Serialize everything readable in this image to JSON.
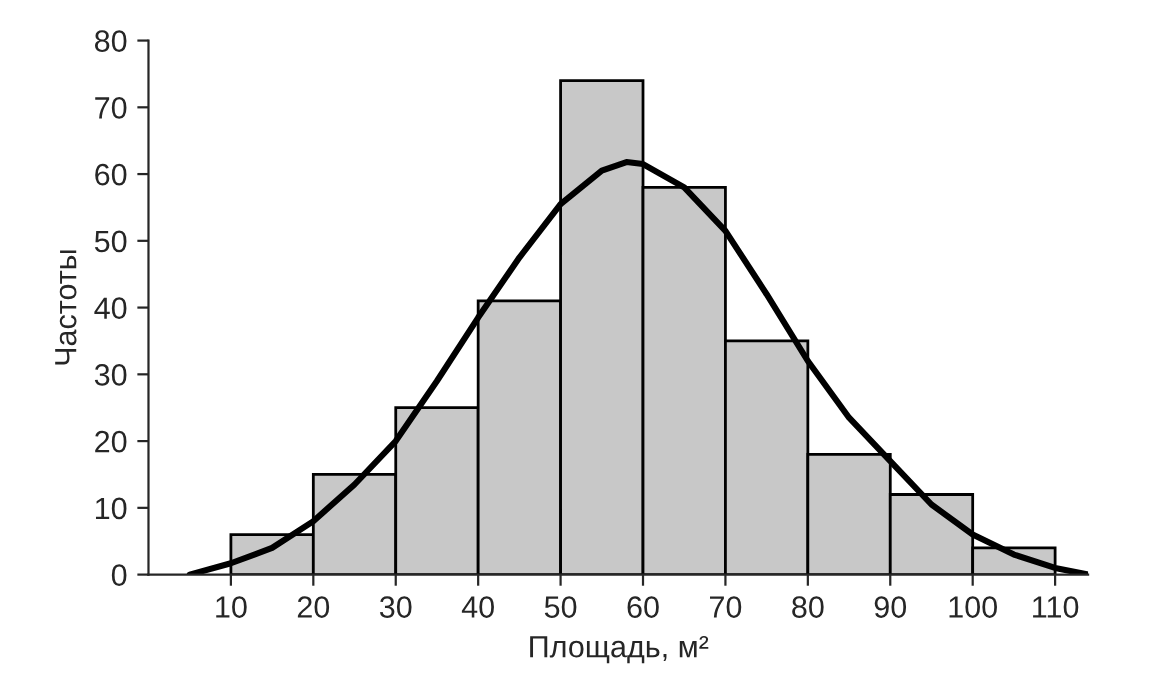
{
  "chart_data": {
    "type": "histogram",
    "xlabel": "Площадь, м²",
    "ylabel": "Частоты",
    "bins": [
      10,
      20,
      30,
      40,
      50,
      60,
      70,
      80,
      90,
      100,
      110
    ],
    "values": [
      6,
      15,
      25,
      41,
      74,
      58,
      35,
      18,
      12,
      4
    ],
    "color": "#c8c8c8",
    "series": [
      {
        "type": "line",
        "color": "#000000",
        "x": [
          5,
          10,
          15,
          20,
          25,
          30,
          35,
          40,
          45,
          50,
          55,
          58,
          60,
          65,
          70,
          75,
          80,
          85,
          90,
          95,
          100,
          105,
          110,
          114
        ],
        "values": [
          0,
          1.7,
          4,
          8,
          13.5,
          20,
          29,
          38.5,
          47.5,
          55.5,
          60.5,
          61.8,
          61.5,
          58,
          51.5,
          42,
          32,
          23.5,
          17,
          10.5,
          6,
          3,
          1,
          0
        ]
      }
    ],
    "xlim": [
      0,
      114
    ],
    "xticks": [
      10,
      20,
      30,
      40,
      50,
      60,
      70,
      80,
      90,
      100,
      110
    ],
    "ylim": [
      0,
      80
    ],
    "yticks": [
      0,
      10,
      20,
      30,
      40,
      50,
      60,
      70,
      80
    ],
    "grid": false,
    "legend": false
  }
}
